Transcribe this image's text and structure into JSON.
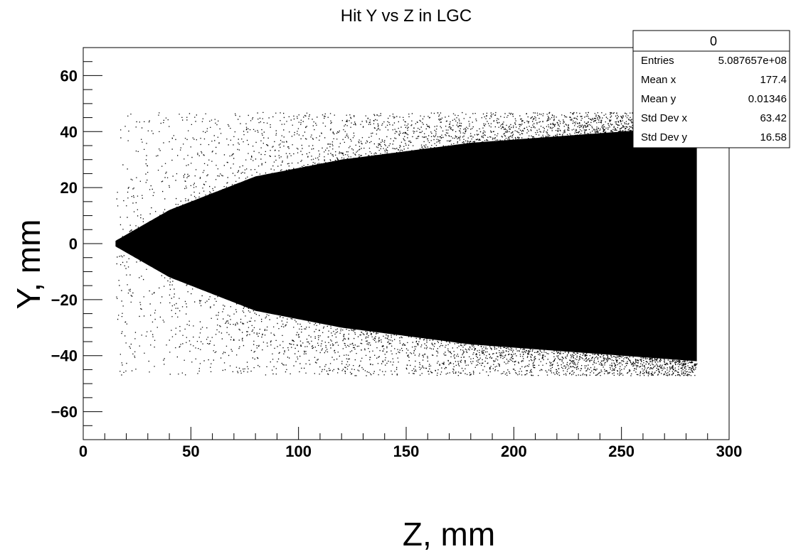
{
  "chart_data": {
    "type": "heatmap",
    "title": "Hit Y vs Z in LGC",
    "xlabel": "Z, mm",
    "ylabel": "Y, mm",
    "xlim": [
      0,
      300
    ],
    "ylim": [
      -70,
      70
    ],
    "x_ticks": [
      0,
      50,
      100,
      150,
      200,
      250,
      300
    ],
    "x_tick_labels": [
      "0",
      "50",
      "100",
      "150",
      "200",
      "250",
      "300"
    ],
    "y_ticks": [
      -60,
      -40,
      -20,
      0,
      20,
      40,
      60
    ],
    "y_tick_labels": [
      "−60",
      "−40",
      "−20",
      "0",
      "20",
      "40",
      "60"
    ],
    "grid": false,
    "color": "#000000",
    "distribution": {
      "z_range": [
        15,
        285
      ],
      "y_range": [
        -47,
        47
      ],
      "description_points": [
        {
          "z": 15,
          "y_core_halfwidth": 1
        },
        {
          "z": 40,
          "y_core_halfwidth": 12
        },
        {
          "z": 80,
          "y_core_halfwidth": 24
        },
        {
          "z": 120,
          "y_core_halfwidth": 30
        },
        {
          "z": 180,
          "y_core_halfwidth": 36
        },
        {
          "z": 285,
          "y_core_halfwidth": 42
        }
      ]
    },
    "stats_box": {
      "name": "0",
      "position": "top-right",
      "rows": [
        {
          "label": "Entries",
          "value": "5.087657e+08"
        },
        {
          "label": "Mean x",
          "value": "177.4"
        },
        {
          "label": "Mean y",
          "value": "0.01346"
        },
        {
          "label": "Std Dev x",
          "value": "63.42"
        },
        {
          "label": "Std Dev y",
          "value": "16.58"
        }
      ]
    }
  }
}
